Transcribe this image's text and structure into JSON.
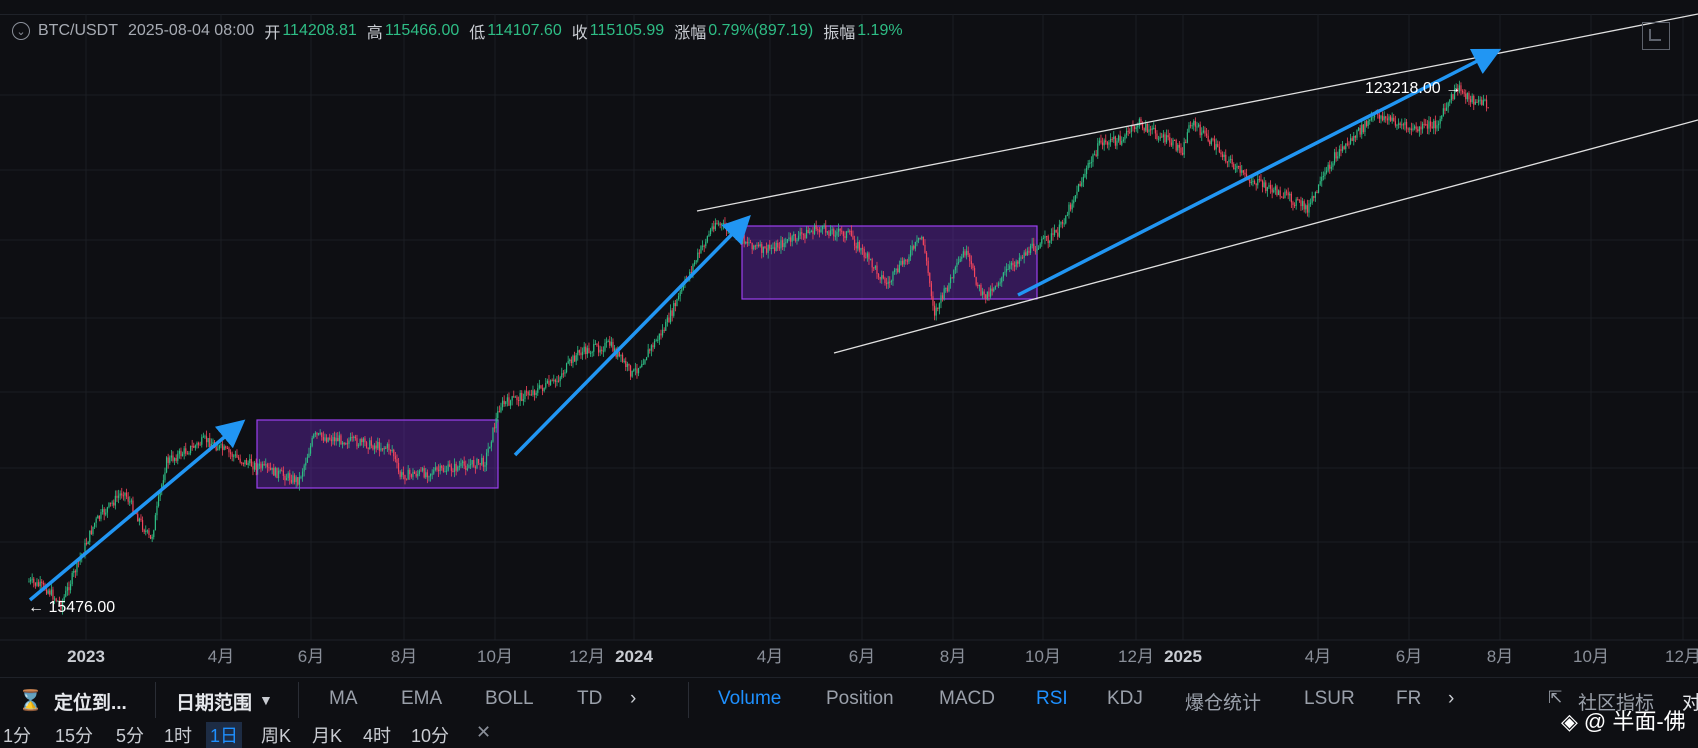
{
  "ohlc": {
    "symbol": "BTC/USDT",
    "date": "2025-08-04 08:00",
    "open_label": "开",
    "open": "114208.81",
    "high_label": "高",
    "high": "115466.00",
    "low_label": "低",
    "low": "114107.60",
    "close_label": "收",
    "close": "115105.99",
    "change_label": "涨幅",
    "change": "0.79%(897.19)",
    "amp_label": "振幅",
    "amp": "1.19%"
  },
  "chart_data": {
    "type": "candlestick",
    "x_ticks": [
      "2023",
      "4月",
      "6月",
      "8月",
      "10月",
      "12月",
      "2024",
      "4月",
      "6月",
      "8月",
      "10月",
      "12月",
      "2025",
      "4月",
      "6月",
      "8月",
      "10月",
      "12月"
    ],
    "annotations": {
      "low_marker": "← 15476.00",
      "high_marker": "123218.00 →"
    },
    "approx_path": [
      [
        "2022-12-20",
        17000
      ],
      [
        "2023-01-01",
        16500
      ],
      [
        "2023-01-10",
        15476
      ],
      [
        "2023-02-01",
        21500
      ],
      [
        "2023-02-20",
        24500
      ],
      [
        "2023-03-10",
        20000
      ],
      [
        "2023-03-20",
        27500
      ],
      [
        "2023-04-15",
        30000
      ],
      [
        "2023-05-10",
        27500
      ],
      [
        "2023-06-15",
        25500
      ],
      [
        "2023-06-25",
        30500
      ],
      [
        "2023-07-15",
        30000
      ],
      [
        "2023-08-15",
        29000
      ],
      [
        "2023-08-20",
        26000
      ],
      [
        "2023-09-15",
        26500
      ],
      [
        "2023-10-15",
        27500
      ],
      [
        "2023-10-25",
        34500
      ],
      [
        "2023-11-30",
        37800
      ],
      [
        "2023-12-15",
        42500
      ],
      [
        "2024-01-05",
        44000
      ],
      [
        "2024-01-20",
        39000
      ],
      [
        "2024-02-10",
        47000
      ],
      [
        "2024-02-28",
        60000
      ],
      [
        "2024-03-14",
        72000
      ],
      [
        "2024-04-15",
        64000
      ],
      [
        "2024-05-20",
        70000
      ],
      [
        "2024-06-10",
        68500
      ],
      [
        "2024-07-05",
        56000
      ],
      [
        "2024-07-28",
        68000
      ],
      [
        "2024-08-05",
        50000
      ],
      [
        "2024-08-25",
        64000
      ],
      [
        "2024-09-06",
        53000
      ],
      [
        "2024-10-01",
        63000
      ],
      [
        "2024-10-25",
        69000
      ],
      [
        "2024-11-12",
        88000
      ],
      [
        "2024-11-22",
        99000
      ],
      [
        "2024-12-05",
        100000
      ],
      [
        "2024-12-17",
        107000
      ],
      [
        "2025-01-15",
        96000
      ],
      [
        "2025-01-20",
        108000
      ],
      [
        "2025-02-25",
        86000
      ],
      [
        "2025-03-15",
        82000
      ],
      [
        "2025-04-07",
        76000
      ],
      [
        "2025-04-25",
        94000
      ],
      [
        "2025-05-22",
        111000
      ],
      [
        "2025-06-15",
        104000
      ],
      [
        "2025-07-01",
        107000
      ],
      [
        "2025-07-14",
        123218
      ],
      [
        "2025-07-25",
        117000
      ],
      [
        "2025-08-04",
        115106
      ]
    ]
  },
  "toolbar": {
    "locate": "定位到...",
    "date_range": "日期范围",
    "ind_main": [
      "MA",
      "EMA",
      "BOLL",
      "TD"
    ],
    "ind_sub": [
      "Volume",
      "Position",
      "MACD",
      "RSI",
      "KDJ",
      "爆仓统计",
      "LSUR",
      "FR"
    ],
    "community": "社区指标",
    "cut": "对"
  },
  "timeframes": [
    "1分",
    "15分",
    "5分",
    "1时",
    "1日",
    "周K",
    "月K",
    "4时",
    "10分"
  ],
  "watermark": "@ 半面-佛",
  "colors": {
    "up": "#2ebd85",
    "down": "#f6465d",
    "arrow": "#2196f3",
    "box": "#7b2fd6",
    "bg": "#0e0f13"
  }
}
